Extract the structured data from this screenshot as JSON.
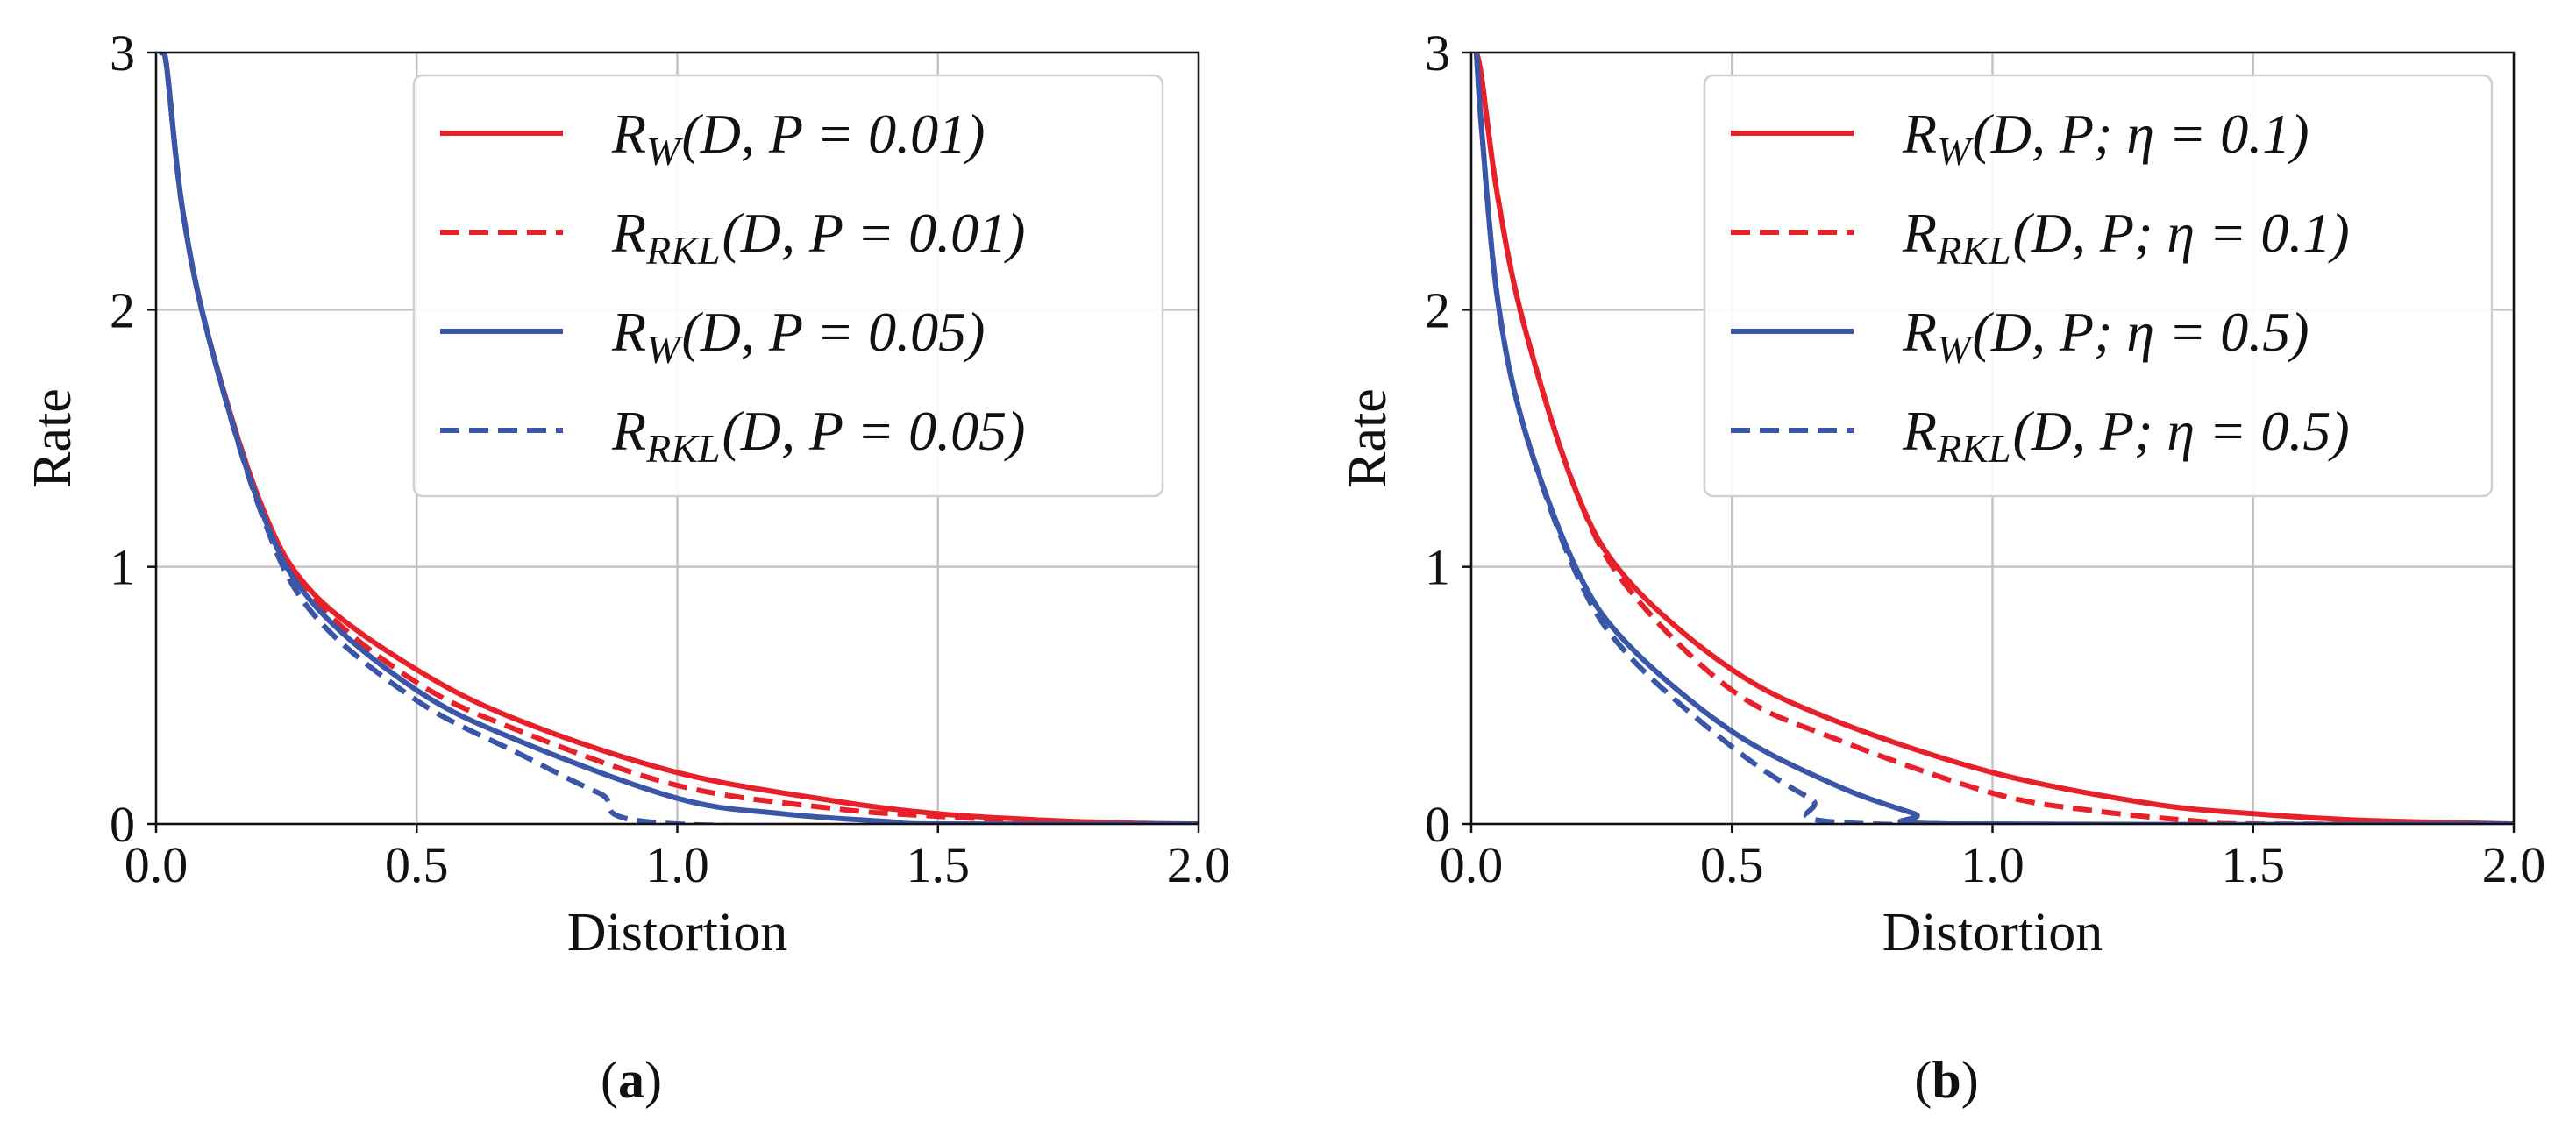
{
  "chart_data": [
    {
      "id": "a",
      "type": "line",
      "caption_letter": "a",
      "xlabel": "Distortion",
      "ylabel": "Rate",
      "xlim": [
        0,
        2
      ],
      "ylim": [
        0,
        3
      ],
      "grid": true,
      "legend_location": "top-right",
      "x_ticks": [
        "0.0",
        "0.5",
        "1.0",
        "1.5",
        "2.0"
      ],
      "y_ticks": [
        "0",
        "1",
        "2",
        "3"
      ],
      "series": [
        {
          "name": "R_W(D, P=0.01)",
          "sub": "W",
          "args": "(D, P = 0.01)",
          "color": "#e8202a",
          "dash": "solid",
          "d0": 1.95,
          "ref": 0.2,
          "pts": [
            [
              0.01,
              3.0
            ],
            [
              0.02,
              2.95
            ],
            [
              0.05,
              2.4
            ],
            [
              0.1,
              1.9
            ],
            [
              0.2,
              1.25
            ],
            [
              0.3,
              0.9
            ],
            [
              0.5,
              0.6
            ],
            [
              0.7,
              0.4
            ],
            [
              1.0,
              0.2
            ],
            [
              1.3,
              0.09
            ],
            [
              1.5,
              0.04
            ],
            [
              1.7,
              0.015
            ],
            [
              1.9,
              0.002
            ],
            [
              2.0,
              0.0
            ]
          ]
        },
        {
          "name": "R_RKL(D, P=0.01)",
          "sub": "RKL",
          "args": "(D, P = 0.01)",
          "color": "#e8202a",
          "dash": "dashed",
          "d0": 1.85,
          "ref": 0.15,
          "pts": [
            [
              0.01,
              3.0
            ],
            [
              0.02,
              2.95
            ],
            [
              0.05,
              2.4
            ],
            [
              0.1,
              1.9
            ],
            [
              0.2,
              1.25
            ],
            [
              0.3,
              0.88
            ],
            [
              0.5,
              0.55
            ],
            [
              0.7,
              0.36
            ],
            [
              1.0,
              0.15
            ],
            [
              1.3,
              0.06
            ],
            [
              1.5,
              0.03
            ],
            [
              1.7,
              0.01
            ],
            [
              1.85,
              0.0
            ],
            [
              2.0,
              0.0
            ]
          ]
        },
        {
          "name": "R_W(D, P=0.05)",
          "sub": "W",
          "args": "(D, P = 0.05)",
          "color": "#3a56a8",
          "dash": "solid",
          "d0": 1.5,
          "ref": 0.07,
          "pts": [
            [
              0.01,
              3.0
            ],
            [
              0.02,
              2.95
            ],
            [
              0.05,
              2.4
            ],
            [
              0.1,
              1.9
            ],
            [
              0.2,
              1.23
            ],
            [
              0.3,
              0.86
            ],
            [
              0.5,
              0.52
            ],
            [
              0.7,
              0.32
            ],
            [
              1.0,
              0.1
            ],
            [
              1.2,
              0.04
            ],
            [
              1.4,
              0.01
            ],
            [
              1.5,
              0.0
            ],
            [
              2.0,
              0.0
            ]
          ]
        },
        {
          "name": "R_RKL(D, P=0.05)",
          "sub": "RKL",
          "args": "(D, P = 0.05)",
          "color": "#3a56a8",
          "dash": "dashed",
          "d0": 1.0,
          "ref": 0.0,
          "pts": [
            [
              0.01,
              3.0
            ],
            [
              0.02,
              2.95
            ],
            [
              0.05,
              2.4
            ],
            [
              0.1,
              1.9
            ],
            [
              0.2,
              1.22
            ],
            [
              0.3,
              0.82
            ],
            [
              0.5,
              0.48
            ],
            [
              0.7,
              0.27
            ],
            [
              0.85,
              0.12
            ],
            [
              1.0,
              0.0
            ],
            [
              2.0,
              0.0
            ]
          ]
        }
      ]
    },
    {
      "id": "b",
      "type": "line",
      "caption_letter": "b",
      "xlabel": "Distortion",
      "ylabel": "Rate",
      "xlim": [
        0,
        2
      ],
      "ylim": [
        0,
        3
      ],
      "grid": true,
      "legend_location": "top-right",
      "x_ticks": [
        "0.0",
        "0.5",
        "1.0",
        "1.5",
        "2.0"
      ],
      "y_ticks": [
        "0",
        "1",
        "2",
        "3"
      ],
      "series": [
        {
          "name": "R_W(D, P; η=0.1)",
          "sub": "W",
          "args": "(D, P; η = 0.1)",
          "color": "#e8202a",
          "dash": "solid",
          "d0": 2.0,
          "ref": 0.2,
          "pts": [
            [
              0.01,
              3.0
            ],
            [
              0.02,
              2.9
            ],
            [
              0.05,
              2.45
            ],
            [
              0.1,
              1.95
            ],
            [
              0.2,
              1.3
            ],
            [
              0.3,
              0.95
            ],
            [
              0.5,
              0.6
            ],
            [
              0.7,
              0.4
            ],
            [
              1.0,
              0.2
            ],
            [
              1.3,
              0.08
            ],
            [
              1.5,
              0.04
            ],
            [
              1.7,
              0.015
            ],
            [
              2.0,
              0.0
            ]
          ]
        },
        {
          "name": "R_RKL(D, P; η=0.1)",
          "sub": "RKL",
          "args": "(D, P; η = 0.1)",
          "color": "#e8202a",
          "dash": "dashed",
          "d0": 1.5,
          "ref": 0.12,
          "pts": [
            [
              0.01,
              3.0
            ],
            [
              0.02,
              2.9
            ],
            [
              0.05,
              2.45
            ],
            [
              0.1,
              1.95
            ],
            [
              0.2,
              1.3
            ],
            [
              0.3,
              0.92
            ],
            [
              0.5,
              0.52
            ],
            [
              0.7,
              0.33
            ],
            [
              1.0,
              0.12
            ],
            [
              1.2,
              0.05
            ],
            [
              1.4,
              0.01
            ],
            [
              1.5,
              0.0
            ],
            [
              2.0,
              0.0
            ]
          ]
        },
        {
          "name": "R_W(D, P; η=0.5)",
          "sub": "W",
          "args": "(D, P; η = 0.5)",
          "color": "#3a56a8",
          "dash": "solid",
          "d0": 0.92,
          "ref": 0.0,
          "pts": [
            [
              0.01,
              3.0
            ],
            [
              0.02,
              2.7
            ],
            [
              0.05,
              2.05
            ],
            [
              0.1,
              1.55
            ],
            [
              0.2,
              1.0
            ],
            [
              0.3,
              0.7
            ],
            [
              0.5,
              0.36
            ],
            [
              0.7,
              0.15
            ],
            [
              0.85,
              0.04
            ],
            [
              0.92,
              0.0
            ],
            [
              2.0,
              0.0
            ]
          ]
        },
        {
          "name": "R_RKL(D, P; η=0.5)",
          "sub": "RKL",
          "args": "(D, P; η = 0.5)",
          "color": "#3a56a8",
          "dash": "dashed",
          "d0": 0.77,
          "ref": 0.0,
          "pts": [
            [
              0.01,
              3.0
            ],
            [
              0.02,
              2.7
            ],
            [
              0.05,
              2.05
            ],
            [
              0.1,
              1.55
            ],
            [
              0.2,
              0.98
            ],
            [
              0.3,
              0.66
            ],
            [
              0.5,
              0.3
            ],
            [
              0.65,
              0.1
            ],
            [
              0.77,
              0.0
            ],
            [
              2.0,
              0.0
            ]
          ]
        }
      ]
    }
  ]
}
